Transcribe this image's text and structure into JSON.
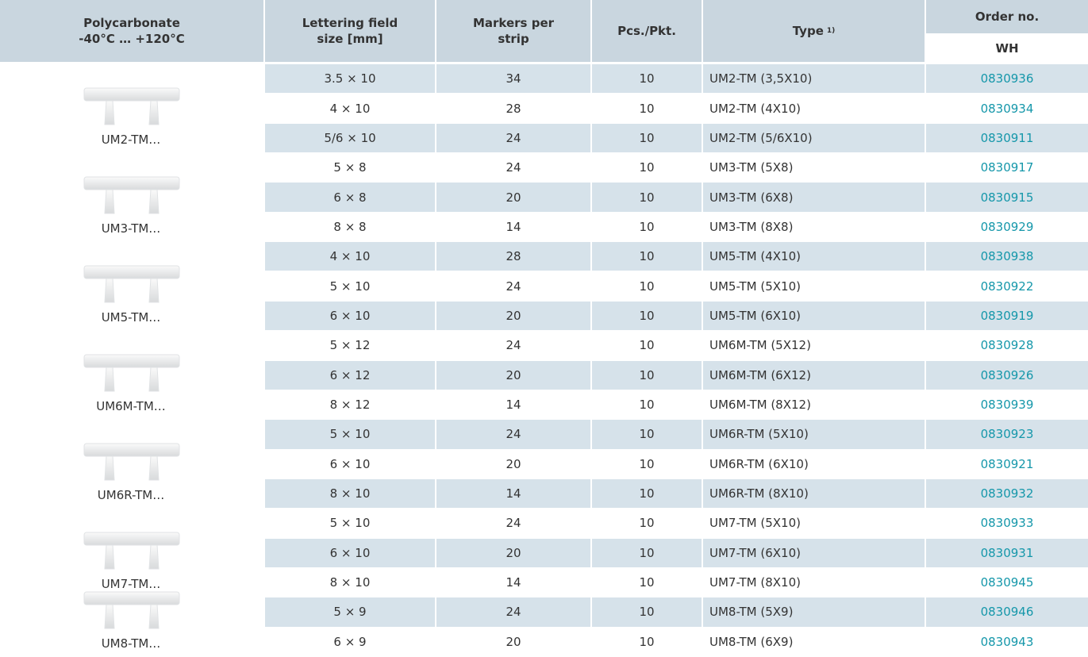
{
  "header": {
    "material": [
      "Polycarbonate",
      "-40°C … +120°C"
    ],
    "field_size": [
      "Lettering field",
      "size [mm]"
    ],
    "markers": [
      "Markers per",
      "strip"
    ],
    "pcs": "Pcs./Pkt.",
    "type": "Type",
    "type_note": "1)",
    "order": "Order no.",
    "order_sub": "WH"
  },
  "groups": [
    "UM2-TM…",
    "UM3-TM…",
    "UM5-TM…",
    "UM6M-TM…",
    "UM6R-TM…",
    "UM7-TM…",
    "UM8-TM…"
  ],
  "rows": [
    [
      "3.5 × 10",
      "34",
      "10",
      "UM2-TM (3,5X10)",
      "0830936"
    ],
    [
      "4 × 10",
      "28",
      "10",
      "UM2-TM (4X10)",
      "0830934"
    ],
    [
      "5/6 × 10",
      "24",
      "10",
      "UM2-TM (5/6X10)",
      "0830911"
    ],
    [
      "5 × 8",
      "24",
      "10",
      "UM3-TM (5X8)",
      "0830917"
    ],
    [
      "6 × 8",
      "20",
      "10",
      "UM3-TM (6X8)",
      "0830915"
    ],
    [
      "8 × 8",
      "14",
      "10",
      "UM3-TM (8X8)",
      "0830929"
    ],
    [
      "4 × 10",
      "28",
      "10",
      "UM5-TM (4X10)",
      "0830938"
    ],
    [
      "5 × 10",
      "24",
      "10",
      "UM5-TM (5X10)",
      "0830922"
    ],
    [
      "6 × 10",
      "20",
      "10",
      "UM5-TM (6X10)",
      "0830919"
    ],
    [
      "5 × 12",
      "24",
      "10",
      "UM6M-TM (5X12)",
      "0830928"
    ],
    [
      "6 × 12",
      "20",
      "10",
      "UM6M-TM (6X12)",
      "0830926"
    ],
    [
      "8 × 12",
      "14",
      "10",
      "UM6M-TM (8X12)",
      "0830939"
    ],
    [
      "5 × 10",
      "24",
      "10",
      "UM6R-TM (5X10)",
      "0830923"
    ],
    [
      "6 × 10",
      "20",
      "10",
      "UM6R-TM (6X10)",
      "0830921"
    ],
    [
      "8 × 10",
      "14",
      "10",
      "UM6R-TM (8X10)",
      "0830932"
    ],
    [
      "5 × 10",
      "24",
      "10",
      "UM7-TM (5X10)",
      "0830933"
    ],
    [
      "6 × 10",
      "20",
      "10",
      "UM7-TM (6X10)",
      "0830931"
    ],
    [
      "8 × 10",
      "14",
      "10",
      "UM7-TM (8X10)",
      "0830945"
    ],
    [
      "5 × 9",
      "24",
      "10",
      "UM8-TM (5X9)",
      "0830946"
    ],
    [
      "6 × 9",
      "20",
      "10",
      "UM8-TM (6X9)",
      "0830943"
    ]
  ]
}
